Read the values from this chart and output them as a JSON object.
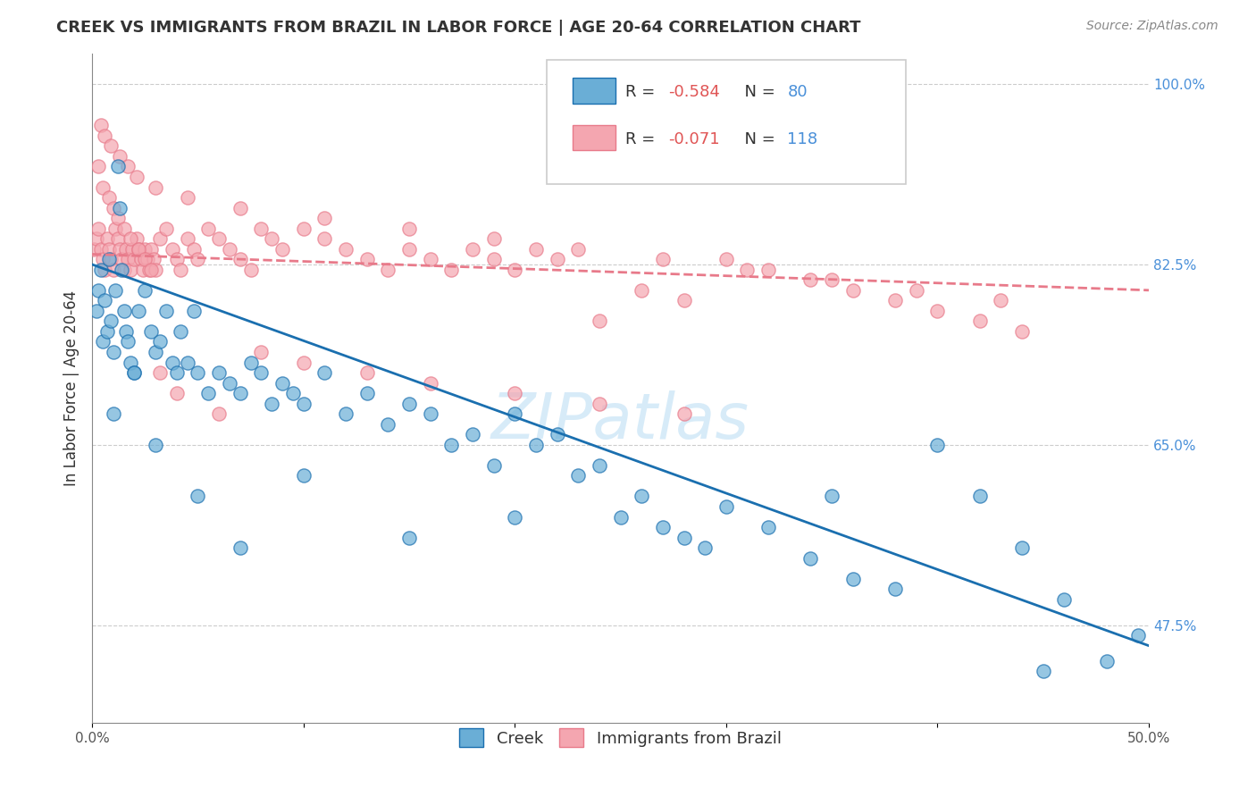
{
  "title": "CREEK VS IMMIGRANTS FROM BRAZIL IN LABOR FORCE | AGE 20-64 CORRELATION CHART",
  "source": "Source: ZipAtlas.com",
  "xlabel": "",
  "ylabel": "In Labor Force | Age 20-64",
  "xlim": [
    0.0,
    0.5
  ],
  "ylim": [
    0.38,
    1.03
  ],
  "xticks": [
    0.0,
    0.1,
    0.2,
    0.3,
    0.4,
    0.5
  ],
  "xticklabels": [
    "0.0%",
    "",
    "",
    "",
    "",
    "50.0%"
  ],
  "yticks_right": [
    1.0,
    0.825,
    0.65,
    0.475
  ],
  "yticklabels_right": [
    "100.0%",
    "82.5%",
    "65.0%",
    "47.5%"
  ],
  "legend_r1": "R = -0.584",
  "legend_n1": "N = 80",
  "legend_r2": "R = -0.071",
  "legend_n2": "N = 118",
  "watermark": "ZIPatlas",
  "blue_color": "#6aaed6",
  "pink_color": "#f4a6b0",
  "blue_line_color": "#1a6faf",
  "pink_line_color": "#e87a8a",
  "creek_scatter_x": [
    0.002,
    0.003,
    0.004,
    0.005,
    0.006,
    0.007,
    0.008,
    0.009,
    0.01,
    0.011,
    0.012,
    0.013,
    0.014,
    0.015,
    0.016,
    0.017,
    0.018,
    0.02,
    0.022,
    0.025,
    0.028,
    0.03,
    0.032,
    0.035,
    0.038,
    0.04,
    0.042,
    0.045,
    0.048,
    0.05,
    0.055,
    0.06,
    0.065,
    0.07,
    0.075,
    0.08,
    0.085,
    0.09,
    0.095,
    0.1,
    0.11,
    0.12,
    0.13,
    0.14,
    0.15,
    0.16,
    0.17,
    0.18,
    0.19,
    0.2,
    0.21,
    0.22,
    0.23,
    0.24,
    0.25,
    0.26,
    0.27,
    0.28,
    0.29,
    0.3,
    0.32,
    0.34,
    0.36,
    0.38,
    0.4,
    0.42,
    0.44,
    0.46,
    0.48,
    0.495,
    0.01,
    0.02,
    0.03,
    0.05,
    0.07,
    0.1,
    0.15,
    0.2,
    0.35,
    0.45
  ],
  "creek_scatter_y": [
    0.78,
    0.8,
    0.82,
    0.75,
    0.79,
    0.76,
    0.83,
    0.77,
    0.74,
    0.8,
    0.92,
    0.88,
    0.82,
    0.78,
    0.76,
    0.75,
    0.73,
    0.72,
    0.78,
    0.8,
    0.76,
    0.74,
    0.75,
    0.78,
    0.73,
    0.72,
    0.76,
    0.73,
    0.78,
    0.72,
    0.7,
    0.72,
    0.71,
    0.7,
    0.73,
    0.72,
    0.69,
    0.71,
    0.7,
    0.69,
    0.72,
    0.68,
    0.7,
    0.67,
    0.69,
    0.68,
    0.65,
    0.66,
    0.63,
    0.68,
    0.65,
    0.66,
    0.62,
    0.63,
    0.58,
    0.6,
    0.57,
    0.56,
    0.55,
    0.59,
    0.57,
    0.54,
    0.52,
    0.51,
    0.65,
    0.6,
    0.55,
    0.5,
    0.44,
    0.465,
    0.68,
    0.72,
    0.65,
    0.6,
    0.55,
    0.62,
    0.56,
    0.58,
    0.6,
    0.43
  ],
  "brazil_scatter_x": [
    0.001,
    0.002,
    0.003,
    0.004,
    0.005,
    0.006,
    0.007,
    0.008,
    0.009,
    0.01,
    0.011,
    0.012,
    0.013,
    0.014,
    0.015,
    0.016,
    0.017,
    0.018,
    0.019,
    0.02,
    0.021,
    0.022,
    0.023,
    0.024,
    0.025,
    0.026,
    0.027,
    0.028,
    0.029,
    0.03,
    0.032,
    0.035,
    0.038,
    0.04,
    0.042,
    0.045,
    0.048,
    0.05,
    0.055,
    0.06,
    0.065,
    0.07,
    0.075,
    0.08,
    0.085,
    0.09,
    0.1,
    0.11,
    0.12,
    0.13,
    0.14,
    0.15,
    0.16,
    0.17,
    0.18,
    0.19,
    0.2,
    0.21,
    0.22,
    0.24,
    0.26,
    0.28,
    0.3,
    0.32,
    0.34,
    0.36,
    0.38,
    0.4,
    0.42,
    0.44,
    0.003,
    0.005,
    0.008,
    0.01,
    0.012,
    0.015,
    0.018,
    0.022,
    0.025,
    0.028,
    0.032,
    0.04,
    0.06,
    0.08,
    0.1,
    0.13,
    0.16,
    0.2,
    0.24,
    0.28,
    0.004,
    0.006,
    0.009,
    0.013,
    0.017,
    0.021,
    0.03,
    0.045,
    0.07,
    0.11,
    0.15,
    0.19,
    0.23,
    0.27,
    0.31,
    0.35,
    0.39,
    0.43
  ],
  "brazil_scatter_y": [
    0.84,
    0.85,
    0.86,
    0.84,
    0.83,
    0.82,
    0.85,
    0.84,
    0.83,
    0.82,
    0.86,
    0.85,
    0.84,
    0.83,
    0.82,
    0.84,
    0.83,
    0.82,
    0.84,
    0.83,
    0.85,
    0.84,
    0.83,
    0.82,
    0.84,
    0.83,
    0.82,
    0.84,
    0.83,
    0.82,
    0.85,
    0.86,
    0.84,
    0.83,
    0.82,
    0.85,
    0.84,
    0.83,
    0.86,
    0.85,
    0.84,
    0.83,
    0.82,
    0.86,
    0.85,
    0.84,
    0.86,
    0.85,
    0.84,
    0.83,
    0.82,
    0.84,
    0.83,
    0.82,
    0.84,
    0.83,
    0.82,
    0.84,
    0.83,
    0.77,
    0.8,
    0.79,
    0.83,
    0.82,
    0.81,
    0.8,
    0.79,
    0.78,
    0.77,
    0.76,
    0.92,
    0.9,
    0.89,
    0.88,
    0.87,
    0.86,
    0.85,
    0.84,
    0.83,
    0.82,
    0.72,
    0.7,
    0.68,
    0.74,
    0.73,
    0.72,
    0.71,
    0.7,
    0.69,
    0.68,
    0.96,
    0.95,
    0.94,
    0.93,
    0.92,
    0.91,
    0.9,
    0.89,
    0.88,
    0.87,
    0.86,
    0.85,
    0.84,
    0.83,
    0.82,
    0.81,
    0.8,
    0.79
  ],
  "blue_trend_x": [
    0.0,
    0.5
  ],
  "blue_trend_y": [
    0.825,
    0.455
  ],
  "pink_trend_x": [
    0.0,
    0.5
  ],
  "pink_trend_y": [
    0.835,
    0.8
  ]
}
